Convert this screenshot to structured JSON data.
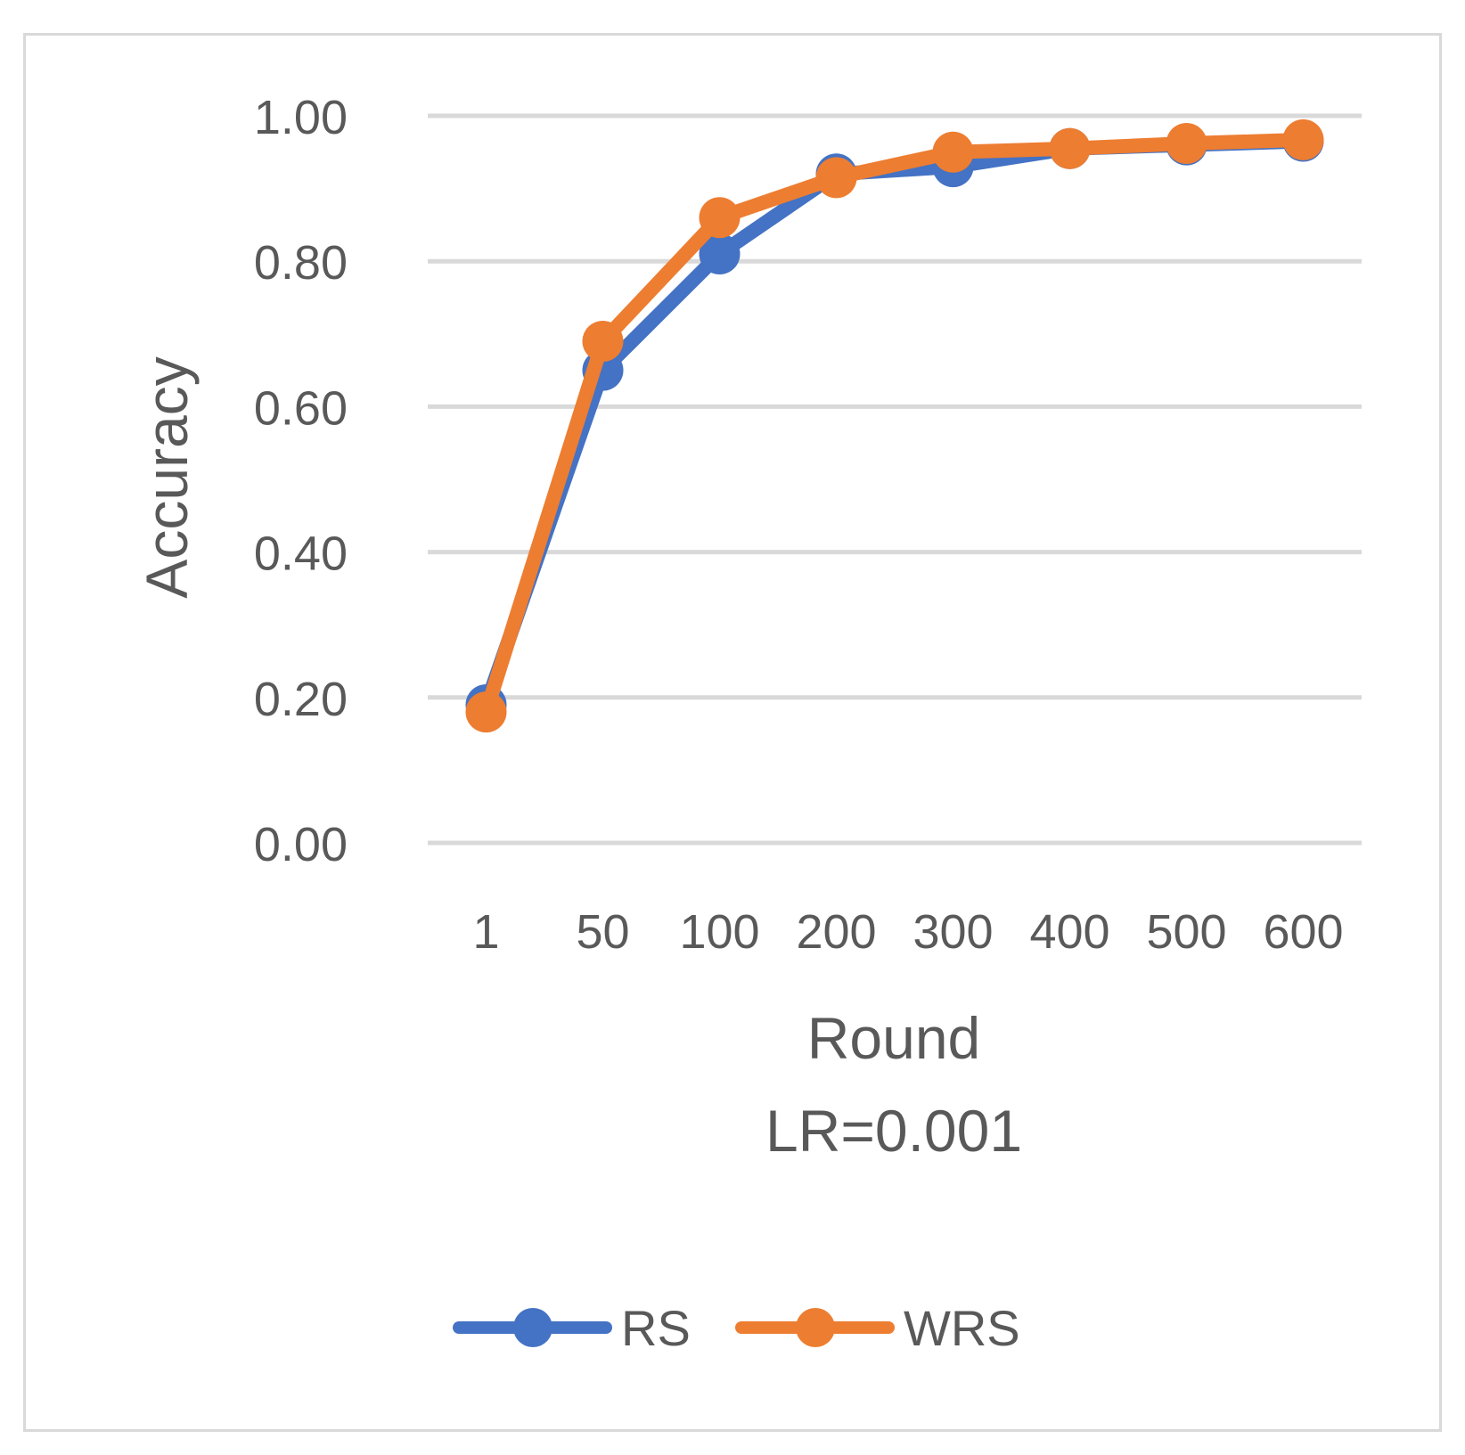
{
  "chart_data": {
    "type": "line",
    "categories": [
      "1",
      "50",
      "100",
      "200",
      "300",
      "400",
      "500",
      "600"
    ],
    "series": [
      {
        "name": "RS",
        "color": "#4472c4",
        "values": [
          0.19,
          0.65,
          0.81,
          0.92,
          0.93,
          0.955,
          0.96,
          0.965
        ]
      },
      {
        "name": "WRS",
        "color": "#ed7d31",
        "values": [
          0.18,
          0.69,
          0.86,
          0.915,
          0.95,
          0.955,
          0.962,
          0.967
        ]
      }
    ],
    "ylim": [
      0,
      1.0
    ],
    "yticks": [
      "0.00",
      "0.20",
      "0.40",
      "0.60",
      "0.80",
      "1.00"
    ],
    "ytick_values": [
      0,
      0.2,
      0.4,
      0.6,
      0.8,
      1.0
    ],
    "ylabel": "Accuracy",
    "xlabel": "Round",
    "subtitle": "LR=0.001",
    "grid": true,
    "legend_position": "bottom"
  }
}
